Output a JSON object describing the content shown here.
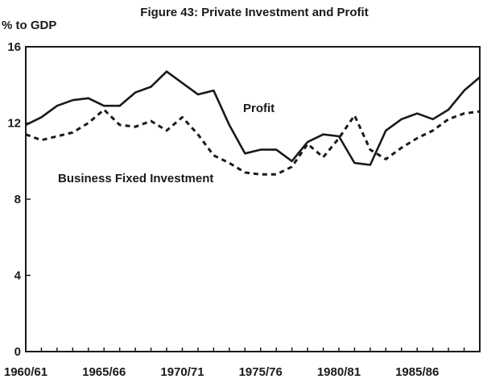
{
  "chart_data": {
    "type": "line",
    "title": "Figure 43: Private Investment and Profit",
    "ylabel": "% to GDP",
    "xlabel": "",
    "ylim": [
      0,
      16
    ],
    "y_ticks": [
      0,
      4,
      8,
      12,
      16
    ],
    "x_tick_labels": [
      "1960/61",
      "1965/66",
      "1970/71",
      "1975/76",
      "1980/81",
      "1985/86"
    ],
    "x_tick_label_index": [
      0,
      5,
      10,
      15,
      20,
      25
    ],
    "x_range": [
      0,
      29
    ],
    "grid": false,
    "series": [
      {
        "name": "Profit",
        "style": "solid",
        "x": [
          0,
          1,
          2,
          3,
          4,
          5,
          6,
          7,
          8,
          9,
          10,
          11,
          12,
          13,
          14,
          15,
          16,
          17,
          18,
          19,
          20,
          21,
          22,
          23,
          24,
          25,
          26,
          27,
          28,
          29
        ],
        "values": [
          11.9,
          12.3,
          12.9,
          13.2,
          13.3,
          12.9,
          12.9,
          13.6,
          13.9,
          14.7,
          14.1,
          13.5,
          13.7,
          11.9,
          10.4,
          10.6,
          10.6,
          10.0,
          11.0,
          11.4,
          11.3,
          9.9,
          9.8,
          11.6,
          12.2,
          12.5,
          12.2,
          12.7,
          13.7,
          14.4
        ]
      },
      {
        "name": "Business Fixed Investment",
        "style": "dashed",
        "x": [
          0,
          1,
          2,
          3,
          4,
          5,
          6,
          7,
          8,
          9,
          10,
          11,
          12,
          13,
          14,
          15,
          16,
          17,
          18,
          19,
          20,
          21,
          22,
          23,
          24,
          25,
          26,
          27,
          28,
          29
        ],
        "values": [
          11.4,
          11.1,
          11.3,
          11.5,
          12.0,
          12.7,
          11.9,
          11.8,
          12.1,
          11.6,
          12.3,
          11.4,
          10.3,
          9.9,
          9.4,
          9.3,
          9.3,
          9.7,
          10.9,
          10.2,
          11.2,
          12.4,
          10.6,
          10.1,
          10.7,
          11.2,
          11.6,
          12.2,
          12.5,
          12.6
        ]
      }
    ],
    "annotations": [
      {
        "text": "Profit",
        "series": "Profit"
      },
      {
        "text": "Business Fixed Investment",
        "series": "Business Fixed Investment"
      }
    ]
  }
}
